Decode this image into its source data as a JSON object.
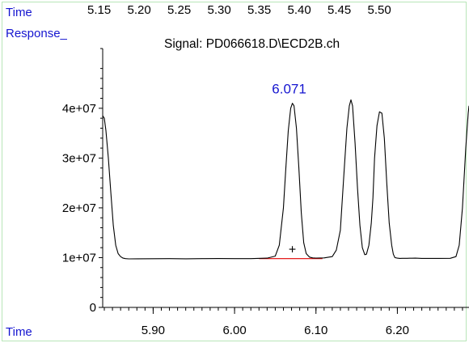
{
  "header": {
    "time_label": "Time",
    "time_ticks": [
      "5.15",
      "5.20",
      "5.25",
      "5.30",
      "5.35",
      "5.40",
      "5.45",
      "5.50"
    ],
    "response_label": "Response_",
    "signal_title": "Signal: PD066618.D\\ECD2B.ch"
  },
  "footer": {
    "time_label": "Time"
  },
  "colors": {
    "label_blue": "#1515d0",
    "baseline_red": "#e00000",
    "frame_green": "#b8e6b8"
  },
  "chart_data": {
    "type": "line",
    "title": "Signal: PD066618.D\\ECD2B.ch",
    "xlabel": "Time",
    "ylabel": "Response_",
    "xlim": [
      5.838,
      6.288
    ],
    "ylim": [
      0,
      52000000
    ],
    "x_ticks": [
      "5.90",
      "6.00",
      "6.10",
      "6.20"
    ],
    "x_tick_values": [
      5.9,
      6.0,
      6.1,
      6.2
    ],
    "y_ticks": [
      "0",
      "1e+07",
      "2e+07",
      "3e+07",
      "4e+07"
    ],
    "y_tick_values": [
      0,
      10000000,
      20000000,
      30000000,
      40000000
    ],
    "series": [
      {
        "x": [
          5.838,
          5.84,
          5.842,
          5.845,
          5.848,
          5.851,
          5.854,
          5.857,
          5.86,
          5.863,
          5.866,
          5.87,
          5.88,
          5.9,
          5.92,
          5.94,
          5.96,
          5.98,
          6.0,
          6.02,
          6.04,
          6.05,
          6.055,
          6.06,
          6.063,
          6.066,
          6.069,
          6.071,
          6.073,
          6.076,
          6.079,
          6.082,
          6.085,
          6.088,
          6.092,
          6.096,
          6.1,
          6.11,
          6.12,
          6.125,
          6.13,
          6.134,
          6.138,
          6.141,
          6.143,
          6.145,
          6.148,
          6.151,
          6.154,
          6.157,
          6.16,
          6.162,
          6.165,
          6.168,
          6.17,
          6.172,
          6.175,
          6.178,
          6.181,
          6.184,
          6.187,
          6.19,
          6.193,
          6.195,
          6.197,
          6.2,
          6.203,
          6.206,
          6.209,
          6.212,
          6.215,
          6.218,
          6.222,
          6.23,
          6.25,
          6.265,
          6.272,
          6.276,
          6.28,
          6.284,
          6.287,
          6.288
        ],
        "y": [
          38500000,
          38000000,
          35500000,
          30000000,
          23000000,
          16500000,
          12500000,
          10800000,
          10200000,
          9900000,
          9800000,
          9750000,
          9760000,
          9780000,
          9800000,
          9770000,
          9800000,
          9820000,
          9800000,
          9800000,
          9900000,
          10300000,
          12500000,
          20000000,
          28000000,
          35500000,
          40000000,
          41000000,
          40500000,
          36000000,
          28000000,
          19000000,
          13000000,
          10800000,
          10100000,
          9950000,
          9920000,
          9950000,
          10200000,
          11500000,
          15500000,
          26000000,
          36000000,
          40500000,
          41700000,
          40500000,
          33000000,
          24000000,
          16500000,
          12000000,
          10600000,
          10700000,
          12500000,
          17000000,
          22000000,
          30000000,
          36500000,
          39300000,
          39000000,
          34000000,
          25000000,
          17000000,
          12500000,
          10700000,
          10000000,
          9900000,
          9850000,
          9860000,
          9860000,
          9870000,
          9880000,
          9880000,
          9890000,
          9850000,
          9840000,
          9860000,
          10200000,
          12500000,
          20000000,
          32000000,
          39000000,
          40500000
        ]
      }
    ],
    "annotations": [
      {
        "text": "6.071",
        "x": 6.071,
        "y": 41000000,
        "color": "#1515d0"
      },
      {
        "text": "+",
        "x": 6.071,
        "y": 11600000
      }
    ],
    "baseline": {
      "x": [
        6.03,
        6.108
      ],
      "y": [
        9800000,
        9800000
      ],
      "color": "#e00000"
    }
  }
}
